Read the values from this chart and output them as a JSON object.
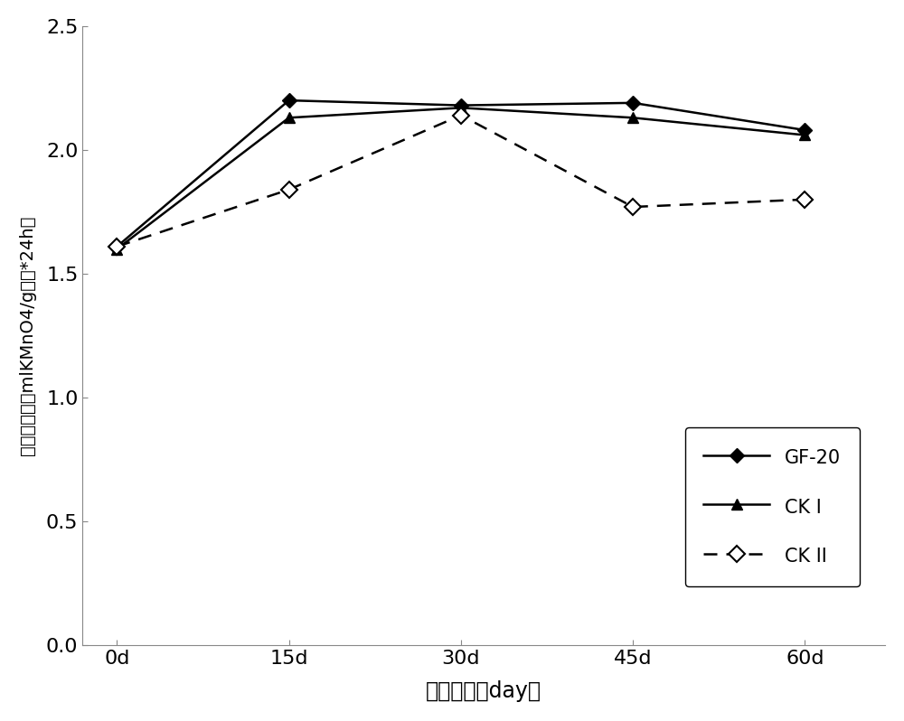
{
  "x": [
    0,
    15,
    30,
    45,
    60
  ],
  "x_labels": [
    "0d",
    "15d",
    "30d",
    "45d",
    "60d"
  ],
  "gf20": [
    1.61,
    2.2,
    2.18,
    2.19,
    2.08
  ],
  "ck1": [
    1.6,
    2.13,
    2.17,
    2.13,
    2.06
  ],
  "ck2": [
    1.61,
    1.84,
    2.14,
    1.77,
    1.8
  ],
  "ylim": [
    0.0,
    2.5
  ],
  "yticks": [
    0.0,
    0.5,
    1.0,
    1.5,
    2.0,
    2.5
  ],
  "ylabel": "过氧化氢酶（mlKMnO4/g干土*24h）",
  "xlabel": "测定时间（day）",
  "legend_gf20": "GF-20",
  "legend_ck1": "CK I",
  "legend_ck2": "CK II",
  "line_color": "#000000",
  "background_color": "#ffffff",
  "marker_size": 8,
  "linewidth": 1.8
}
